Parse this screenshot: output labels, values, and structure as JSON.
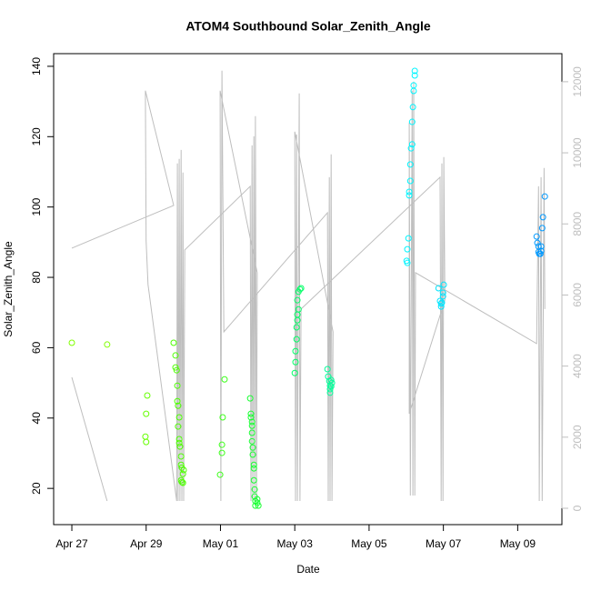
{
  "chart_data": {
    "type": "scatter",
    "title": "ATOM4 Southbound Solar_Zenith_Angle",
    "x_label": "Date",
    "y_label": "Solar_Zenith_Angle",
    "xlim": [
      -0.49,
      13.19
    ],
    "ylim": [
      9.7,
      143.6
    ],
    "y2lim": [
      -460,
      12790
    ],
    "xticks": [
      {
        "value": 0,
        "label": "Apr 27"
      },
      {
        "value": 2,
        "label": "Apr 29"
      },
      {
        "value": 4,
        "label": "May 01"
      },
      {
        "value": 6,
        "label": "May 03"
      },
      {
        "value": 8,
        "label": "May 05"
      },
      {
        "value": 10,
        "label": "May 07"
      },
      {
        "value": 12,
        "label": "May 09"
      }
    ],
    "yticks": [
      20,
      40,
      60,
      80,
      100,
      120,
      140
    ],
    "y2ticks": [
      0,
      2000,
      4000,
      6000,
      8000,
      10000,
      12000
    ],
    "series": [
      {
        "color": "#80ff00",
        "x": [
          0,
          0.95
        ],
        "values": [
          61.4,
          60.9
        ]
      },
      {
        "color": "#66ff00",
        "x": [
          2.03,
          2.0,
          1.98,
          2.0
        ],
        "values": [
          46.4,
          41.2,
          34.7,
          33.2
        ]
      },
      {
        "color": "#4cff00",
        "x": [
          2.74,
          2.79,
          2.79,
          2.82,
          2.84,
          2.84,
          2.86,
          2.89,
          2.86,
          2.89,
          2.89,
          2.91,
          2.94,
          2.94,
          2.96,
          2.99,
          2.94,
          2.96,
          2.99,
          3.01
        ],
        "values": [
          61.4,
          57.8,
          54.4,
          53.6,
          49.2,
          44.8,
          43.5,
          40.2,
          37.6,
          34.0,
          32.9,
          31.9,
          29.1,
          26.7,
          25.9,
          24.1,
          22.3,
          21.8,
          21.6,
          25.2
        ]
      },
      {
        "color": "#3cff1a",
        "x": [
          3.99,
          4.04,
          4.04,
          4.06,
          4.11
        ],
        "values": [
          23.9,
          30.1,
          32.4,
          40.2,
          51.0
        ]
      },
      {
        "color": "#1aff33",
        "x": [
          4.8,
          4.82,
          4.82,
          4.85,
          4.85,
          4.85,
          4.85,
          4.87,
          4.87,
          4.9,
          4.9,
          4.9,
          4.92,
          4.92,
          4.94,
          4.94,
          4.99,
          4.99,
          5.02
        ],
        "values": [
          45.6,
          41.2,
          40.2,
          38.9,
          37.8,
          35.8,
          33.4,
          31.6,
          29.6,
          26.7,
          25.7,
          22.3,
          19.7,
          17.7,
          16.4,
          15.1,
          16.9,
          15.9,
          15.1
        ]
      },
      {
        "color": "#00ff66",
        "x": [
          6.0,
          6.02,
          6.02,
          6.05,
          6.05,
          6.07,
          6.07,
          6.1,
          6.07,
          6.1,
          6.14,
          6.17
        ],
        "values": [
          52.8,
          55.9,
          59.0,
          62.4,
          65.8,
          67.8,
          69.4,
          70.9,
          73.5,
          75.9,
          76.6,
          76.9
        ]
      },
      {
        "color": "#00ff99",
        "x": [
          6.88,
          6.9,
          6.93,
          6.95,
          6.95,
          6.95,
          6.98,
          6.98,
          7.0
        ],
        "values": [
          53.9,
          51.8,
          50.5,
          49.2,
          48.2,
          47.2,
          50.8,
          49.0,
          50.0
        ]
      },
      {
        "color": "#00f5ff",
        "x": [
          9.01,
          9.03,
          9.03,
          9.06,
          9.08,
          9.08,
          9.11,
          9.11,
          9.13,
          9.16,
          9.16,
          9.18,
          9.2,
          9.2,
          9.23,
          9.23
        ],
        "values": [
          84.7,
          84.1,
          88.0,
          91.1,
          103.3,
          104.3,
          107.4,
          112.1,
          116.7,
          117.8,
          124.2,
          128.4,
          133.0,
          134.6,
          137.4,
          138.7
        ]
      },
      {
        "color": "#00e5ff",
        "x": [
          9.87,
          9.91,
          9.94,
          9.94,
          9.96,
          9.99,
          9.99,
          10.01
        ],
        "values": [
          76.9,
          73.3,
          72.5,
          71.7,
          72.8,
          74.6,
          75.6,
          77.9
        ]
      },
      {
        "color": "#0099ff",
        "x": [
          12.51,
          12.53,
          12.56,
          12.56,
          12.58,
          12.61,
          12.63,
          12.63,
          12.66,
          12.68,
          12.73
        ],
        "values": [
          91.6,
          89.8,
          88.8,
          87.2,
          86.7,
          86.7,
          88.8,
          87.5,
          94.0,
          97.1,
          103.0
        ]
      },
      {
        "type": "line",
        "axis": "y2",
        "color": "#bebebe",
        "x": [
          0,
          0.95,
          null,
          0,
          2.74,
          1.98,
          2.0,
          2.05,
          2.82,
          2.84,
          2.86,
          2.89,
          2.91,
          2.94,
          2.96,
          2.99,
          3.01,
          3.04,
          4.8,
          4.82,
          4.85,
          4.87,
          4.9,
          4.92,
          4.94,
          4.97,
          4.99,
          3.99,
          4.01,
          4.04,
          4.09,
          6.88,
          6.9,
          6.93,
          6.95,
          6.98,
          7.0,
          7.03,
          6.0,
          6.02,
          6.05,
          6.07,
          6.12,
          6.14,
          6.17,
          9.91,
          9.94,
          9.96,
          9.99,
          10.01,
          10.04,
          9.08,
          9.08,
          9.11,
          9.16,
          9.18,
          9.2,
          9.23,
          9.25,
          12.51,
          12.56,
          12.58,
          12.63,
          12.66,
          12.71,
          12.73
        ],
        "values": [
          3685,
          205,
          null,
          7319,
          8521,
          11746,
          7523,
          6295,
          205,
          9699,
          205,
          9827,
          205,
          10082,
          205,
          9443,
          205,
          7268,
          9059,
          205,
          10210,
          205,
          10466,
          205,
          11029,
          205,
          6628,
          11746,
          205,
          12309,
          4964,
          8317,
          205,
          9315,
          205,
          9955,
          205,
          4964,
          10594,
          205,
          10517,
          205,
          11669,
          205,
          5604,
          9315,
          205,
          9699,
          205,
          9878,
          5860,
          2661,
          10850,
          358,
          11746,
          358,
          12002,
          358,
          6628,
          4632,
          9059,
          205,
          9315,
          205,
          9571,
          5604
        ]
      }
    ]
  }
}
